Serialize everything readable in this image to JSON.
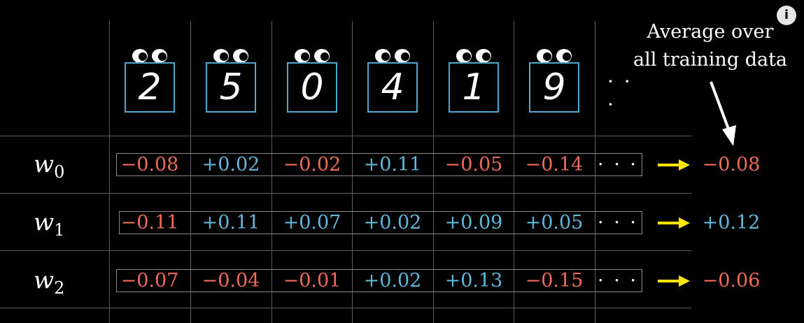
{
  "header": {
    "digits": [
      "2",
      "5",
      "0",
      "4",
      "1",
      "9"
    ],
    "ellipsis": "· · ·",
    "average_label_line1": "Average over",
    "average_label_line2": "all training data"
  },
  "rows": [
    {
      "label": "w",
      "subscript": "0",
      "values": [
        "−0.08",
        "+0.02",
        "−0.02",
        "+0.11",
        "−0.05",
        "−0.14"
      ],
      "signs": [
        "neg",
        "pos",
        "neg",
        "pos",
        "neg",
        "neg"
      ],
      "ellipsis": "· · ·",
      "average": "−0.08",
      "average_sign": "neg"
    },
    {
      "label": "w",
      "subscript": "1",
      "values": [
        "−0.11",
        "+0.11",
        "+0.07",
        "+0.02",
        "+0.09",
        "+0.05"
      ],
      "signs": [
        "neg",
        "pos",
        "pos",
        "pos",
        "pos",
        "pos"
      ],
      "ellipsis": "· · ·",
      "average": "+0.12",
      "average_sign": "pos"
    },
    {
      "label": "w",
      "subscript": "2",
      "values": [
        "−0.07",
        "−0.04",
        "−0.01",
        "+0.02",
        "+0.13",
        "−0.15"
      ],
      "signs": [
        "neg",
        "neg",
        "neg",
        "pos",
        "pos",
        "neg"
      ],
      "ellipsis": "· · ·",
      "average": "−0.06",
      "average_sign": "neg"
    }
  ],
  "colors": {
    "negative": "#ef6b5a",
    "positive": "#5fb8dc",
    "arrow": "#ffe600",
    "digit_border": "#4fa8cf",
    "grid": "#5d5d5d"
  },
  "icons": {
    "eyes": "googly-eyes-icon",
    "arrow": "arrow-right-icon",
    "info": "info-icon"
  },
  "info_icon_label": "i"
}
